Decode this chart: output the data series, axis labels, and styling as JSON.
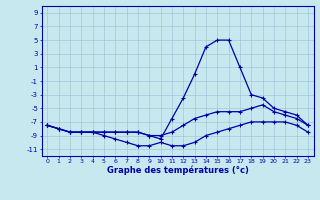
{
  "title": "Graphe des températures (°c)",
  "x_hours": [
    0,
    1,
    2,
    3,
    4,
    5,
    6,
    7,
    8,
    9,
    10,
    11,
    12,
    13,
    14,
    15,
    16,
    17,
    18,
    19,
    20,
    21,
    22,
    23
  ],
  "line1": [
    -7.5,
    -8.0,
    -8.5,
    -8.5,
    -8.5,
    -8.5,
    -8.5,
    -8.5,
    -8.5,
    -9.0,
    -9.0,
    -8.5,
    -7.5,
    -6.5,
    -6.0,
    -5.5,
    -5.5,
    -5.5,
    -5.0,
    -4.5,
    -5.5,
    -6.0,
    -6.5,
    -7.5
  ],
  "line2": [
    -7.5,
    -8.0,
    -8.5,
    -8.5,
    -8.5,
    -8.5,
    -8.5,
    -8.5,
    -8.5,
    -9.0,
    -9.5,
    -6.5,
    -3.5,
    0.0,
    4.0,
    5.0,
    5.0,
    1.0,
    -3.0,
    -3.5,
    -5.0,
    -5.5,
    -6.0,
    -7.5
  ],
  "line3": [
    -7.5,
    -8.0,
    -8.5,
    -8.5,
    -8.5,
    -9.0,
    -9.5,
    -10.0,
    -10.5,
    -10.5,
    -10.0,
    -10.5,
    -10.5,
    -10.0,
    -9.0,
    -8.5,
    -8.0,
    -7.5,
    -7.0,
    -7.0,
    -7.0,
    -7.0,
    -7.5,
    -8.5
  ],
  "ylim": [
    -12,
    10
  ],
  "xlim": [
    -0.5,
    23.5
  ],
  "bg_color": "#c8e8f0",
  "grid_color": "#a0c8d8",
  "line_color": "#0000aa",
  "yticks": [
    -11,
    -9,
    -7,
    -5,
    -3,
    -1,
    1,
    3,
    5,
    7,
    9
  ],
  "xticks": [
    0,
    1,
    2,
    3,
    4,
    5,
    6,
    7,
    8,
    9,
    10,
    11,
    12,
    13,
    14,
    15,
    16,
    17,
    18,
    19,
    20,
    21,
    22,
    23
  ]
}
